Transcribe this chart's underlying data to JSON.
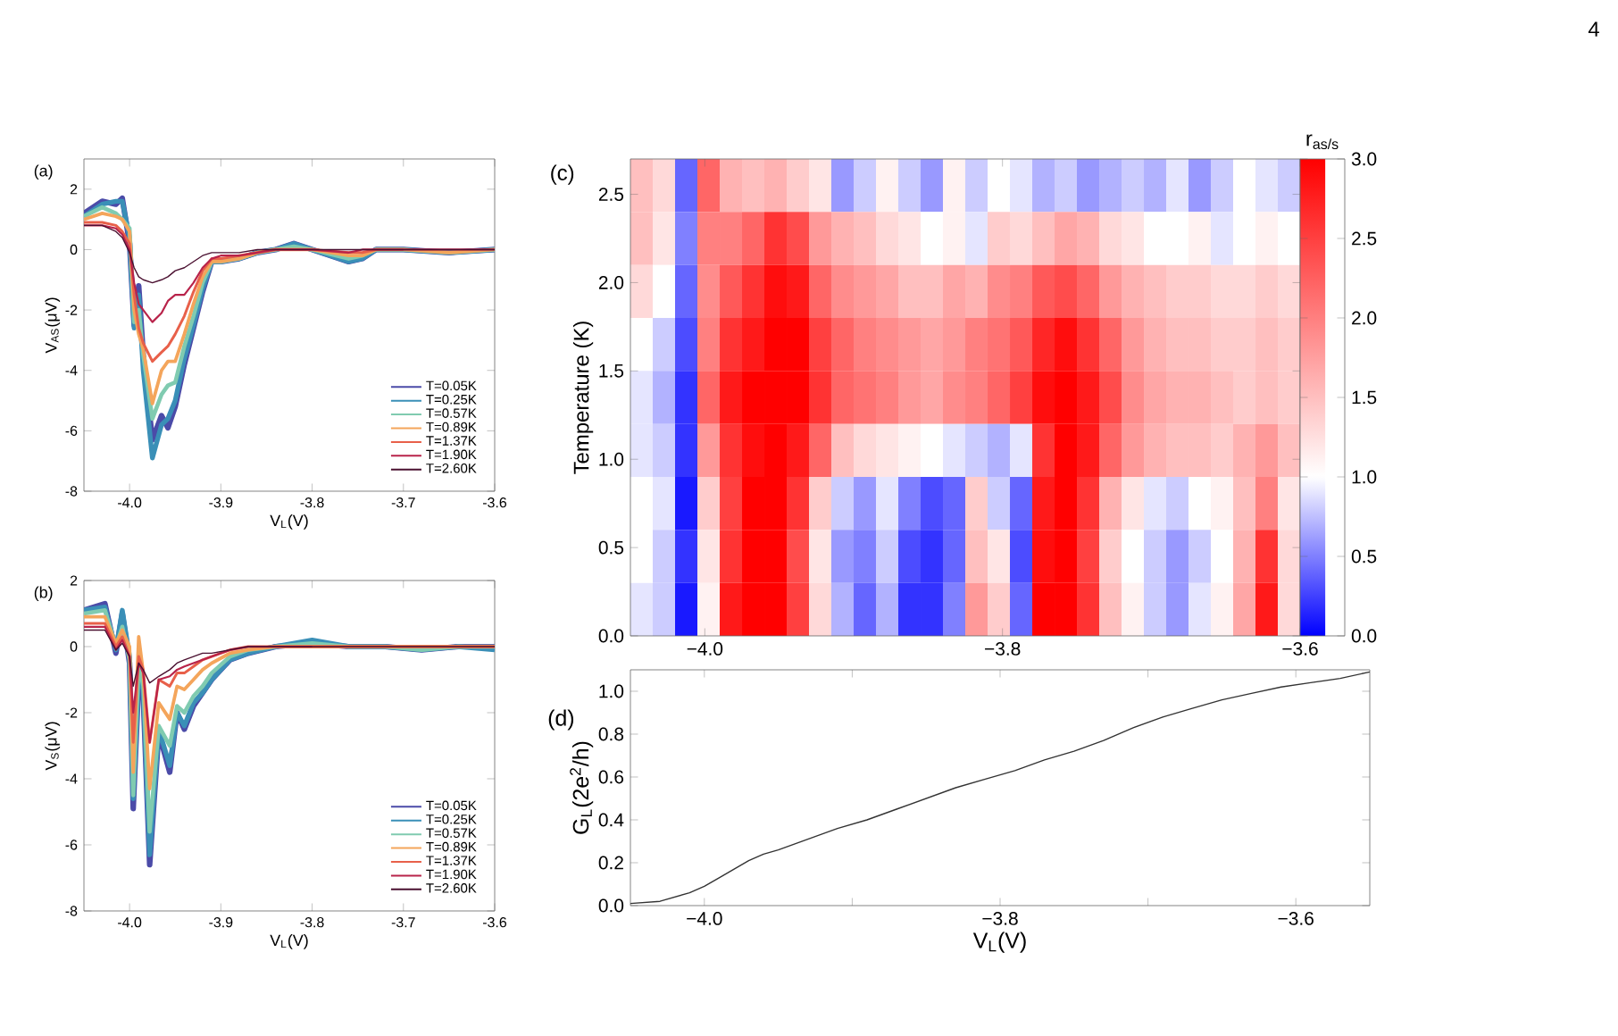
{
  "chart_data": [
    {
      "type": "line",
      "xlabel": "V$_{L}$(V)",
      "ylabel": "V$_{AS}$(μV)",
      "annotations": [
        "(a)"
      ],
      "legend": "bottom right",
      "xlim": [
        -4.05,
        -3.6
      ],
      "ylim": [
        -8,
        3
      ],
      "xticks": [
        {
          "value": -4.0,
          "label": "-4.0"
        },
        {
          "value": -3.9,
          "label": "-3.9"
        },
        {
          "value": -3.8,
          "label": "-3.8"
        },
        {
          "value": -3.7,
          "label": "-3.7"
        },
        {
          "value": -3.6,
          "label": "-3.6"
        }
      ],
      "yticks": [
        -8,
        -6,
        -4,
        -2,
        0,
        2
      ],
      "x": [
        -4.05,
        -4.03,
        -4.015,
        -4.008,
        -4.0,
        -3.995,
        -3.99,
        -3.985,
        -3.975,
        -3.965,
        -3.958,
        -3.95,
        -3.94,
        -3.93,
        -3.92,
        -3.91,
        -3.9,
        -3.88,
        -3.86,
        -3.84,
        -3.82,
        -3.8,
        -3.76,
        -3.745,
        -3.73,
        -3.7,
        -3.65,
        -3.6
      ],
      "series": [
        {
          "name": "T=0.05K",
          "color": "#4b4ba8",
          "values": [
            1.2,
            1.6,
            1.5,
            1.7,
            0.2,
            -2.5,
            -1.2,
            -3.5,
            -6.3,
            -5.5,
            -5.9,
            -5.2,
            -3.8,
            -2.6,
            -1.4,
            -0.4,
            -0.4,
            -0.3,
            -0.1,
            0.0,
            0.2,
            0.0,
            -0.4,
            -0.3,
            0.0,
            0.0,
            -0.1,
            0.0
          ]
        },
        {
          "name": "T=0.25K",
          "color": "#3a8fb7",
          "values": [
            1.1,
            1.5,
            1.6,
            1.6,
            0.4,
            -2.6,
            -1.5,
            -4.0,
            -6.9,
            -5.8,
            -5.6,
            -5.0,
            -3.6,
            -2.5,
            -1.3,
            -0.4,
            -0.4,
            -0.3,
            -0.1,
            0.0,
            0.2,
            0.0,
            -0.4,
            -0.3,
            0.0,
            0.0,
            -0.1,
            0.0
          ]
        },
        {
          "name": "T=0.57K",
          "color": "#80cbb0",
          "values": [
            1.1,
            1.4,
            1.2,
            1.0,
            0.7,
            -2.4,
            -2.0,
            -3.5,
            -5.6,
            -4.8,
            -4.5,
            -4.4,
            -3.2,
            -2.2,
            -1.1,
            -0.4,
            -0.4,
            -0.3,
            -0.1,
            0.0,
            0.1,
            0.0,
            -0.3,
            -0.2,
            0.0,
            0.0,
            -0.1,
            0.0
          ]
        },
        {
          "name": "T=0.89K",
          "color": "#f4a55b",
          "values": [
            1.0,
            1.2,
            1.1,
            1.0,
            0.6,
            -2.0,
            -2.8,
            -3.3,
            -5.1,
            -4.0,
            -3.7,
            -3.7,
            -2.8,
            -1.8,
            -0.9,
            -0.4,
            -0.4,
            -0.3,
            -0.1,
            0.0,
            0.0,
            0.0,
            -0.2,
            -0.2,
            0.0,
            0.0,
            -0.1,
            0.0
          ]
        },
        {
          "name": "T=1.37K",
          "color": "#e8604a",
          "values": [
            0.9,
            0.9,
            0.8,
            0.6,
            0.2,
            -1.5,
            -2.6,
            -3.1,
            -3.7,
            -3.4,
            -3.2,
            -2.8,
            -2.2,
            -1.4,
            -0.7,
            -0.3,
            -0.3,
            -0.2,
            -0.1,
            0.0,
            0.0,
            0.0,
            -0.1,
            -0.1,
            0.0,
            0.0,
            null,
            null
          ]
        },
        {
          "name": "T=1.90K",
          "color": "#b8234a",
          "values": [
            0.8,
            0.8,
            0.7,
            0.5,
            0.0,
            -1.1,
            -1.8,
            -2.0,
            -2.4,
            -2.1,
            -1.7,
            -1.5,
            -1.5,
            -1.1,
            -0.6,
            -0.3,
            -0.2,
            -0.2,
            -0.1,
            0.0,
            0.0,
            0.0,
            -0.1,
            0.0,
            0.0,
            0.0,
            0.0,
            0.0
          ]
        },
        {
          "name": "T=2.60K",
          "color": "#4a1030",
          "values": [
            0.8,
            0.8,
            0.6,
            0.4,
            -0.1,
            -0.6,
            -0.9,
            -1.0,
            -1.1,
            -1.0,
            -0.9,
            -0.7,
            -0.6,
            -0.4,
            -0.2,
            -0.1,
            -0.1,
            -0.1,
            0.0,
            0.0,
            0.0,
            0.0,
            0.0,
            0.0,
            0.0,
            0.0,
            0.0,
            0.0
          ]
        }
      ]
    },
    {
      "type": "line",
      "xlabel": "V$_{L}$(V)",
      "ylabel": "V$_{S}$(μV)",
      "annotations": [
        "(b)"
      ],
      "legend": "bottom right",
      "xlim": [
        -4.05,
        -3.6
      ],
      "ylim": [
        -8,
        2
      ],
      "xticks": [
        {
          "value": -4.0,
          "label": "-4.0"
        },
        {
          "value": -3.9,
          "label": "-3.9"
        },
        {
          "value": -3.8,
          "label": "-3.8"
        },
        {
          "value": -3.7,
          "label": "-3.7"
        },
        {
          "value": -3.6,
          "label": "-3.6"
        }
      ],
      "yticks": [
        -8,
        -6,
        -4,
        -2,
        0,
        2
      ],
      "x": [
        -4.05,
        -4.027,
        -4.015,
        -4.008,
        -4.0,
        -3.996,
        -3.99,
        -3.985,
        -3.978,
        -3.968,
        -3.956,
        -3.948,
        -3.94,
        -3.93,
        -3.92,
        -3.91,
        -3.89,
        -3.87,
        -3.84,
        -3.8,
        -3.76,
        -3.72,
        -3.68,
        -3.64,
        -3.6
      ],
      "series": [
        {
          "name": "T=0.05K",
          "color": "#4b4ba8",
          "values": [
            1.1,
            1.3,
            -0.2,
            1.0,
            -0.5,
            -4.9,
            -1.0,
            -1.5,
            -6.6,
            -2.6,
            -3.8,
            -2.0,
            -2.5,
            -1.8,
            -1.4,
            -1.0,
            -0.4,
            -0.2,
            0.0,
            0.1,
            0.0,
            0.0,
            -0.1,
            0.0,
            0.0
          ]
        },
        {
          "name": "T=0.25K",
          "color": "#3a8fb7",
          "values": [
            1.1,
            1.2,
            -0.1,
            1.1,
            -0.3,
            -4.6,
            -0.8,
            -1.3,
            -6.3,
            -2.5,
            -3.6,
            -2.0,
            -2.4,
            -1.7,
            -1.4,
            -1.0,
            -0.4,
            -0.2,
            0.0,
            0.2,
            0.0,
            0.0,
            -0.1,
            0.0,
            -0.1
          ]
        },
        {
          "name": "T=0.57K",
          "color": "#80cbb0",
          "values": [
            1.0,
            1.1,
            0.0,
            0.6,
            -0.4,
            -4.5,
            -0.5,
            -1.2,
            -5.6,
            -2.4,
            -3.0,
            -1.8,
            -2.0,
            -1.5,
            -1.2,
            -0.8,
            -0.3,
            -0.1,
            0.0,
            0.1,
            0.0,
            0.0,
            -0.1,
            0.0,
            0.0
          ]
        },
        {
          "name": "T=0.89K",
          "color": "#f4a55b",
          "values": [
            0.9,
            0.9,
            0.1,
            0.5,
            0.0,
            -3.8,
            0.3,
            -0.8,
            -4.3,
            -1.7,
            -2.2,
            -1.2,
            -1.3,
            -1.0,
            -0.7,
            -0.5,
            -0.2,
            -0.1,
            0.0,
            0.0,
            0.0,
            0.0,
            0.0,
            0.0,
            0.0
          ]
        },
        {
          "name": "T=1.37K",
          "color": "#e8604a",
          "values": [
            0.7,
            0.7,
            0.0,
            0.3,
            -0.3,
            -2.9,
            -0.3,
            -0.7,
            -2.9,
            -1.0,
            -1.2,
            -0.8,
            -0.8,
            -0.6,
            -0.4,
            -0.3,
            -0.1,
            0.0,
            0.0,
            0.0,
            0.0,
            0.0,
            0.0,
            0.0,
            0.0
          ]
        },
        {
          "name": "T=1.90K",
          "color": "#b8234a",
          "values": [
            0.6,
            0.6,
            -0.1,
            0.2,
            -0.3,
            -2.0,
            -0.5,
            -0.8,
            -2.9,
            -1.0,
            -0.9,
            -0.7,
            -0.6,
            -0.5,
            -0.4,
            -0.3,
            -0.1,
            0.0,
            0.0,
            0.0,
            null,
            null,
            null,
            null,
            null
          ]
        },
        {
          "name": "T=2.60K",
          "color": "#4a1030",
          "values": [
            0.5,
            0.5,
            -0.1,
            0.1,
            -0.3,
            -1.2,
            -0.5,
            -0.7,
            -1.1,
            -0.9,
            -0.7,
            -0.5,
            -0.4,
            -0.3,
            -0.2,
            -0.2,
            -0.1,
            0.0,
            0.0,
            0.0,
            0.0,
            0.0,
            0.0,
            0.0,
            0.0
          ]
        }
      ]
    },
    {
      "type": "heatmap",
      "ylabel": "Temperature (K)",
      "clabel": "r$_{as/s}$",
      "annotations": [
        "(c)",
        "4"
      ],
      "xlim": [
        -4.05,
        -3.6
      ],
      "ylim": [
        0,
        2.7
      ],
      "xticks": [
        {
          "value": -4.0,
          "label": "−4.0"
        },
        {
          "value": -3.8,
          "label": "−3.8"
        },
        {
          "value": -3.6,
          "label": "−3.6"
        }
      ],
      "yticks": [
        {
          "value": 0,
          "label": "0.0"
        },
        {
          "value": 0.5,
          "label": "0.5"
        },
        {
          "value": 1.0,
          "label": "1.0"
        },
        {
          "value": 1.5,
          "label": "1.5"
        },
        {
          "value": 2.0,
          "label": "2.0"
        },
        {
          "value": 2.5,
          "label": "2.5"
        }
      ],
      "clim": [
        0,
        3
      ],
      "cticks": [
        {
          "value": 0,
          "label": "0.0"
        },
        {
          "value": 0.5,
          "label": "0.5"
        },
        {
          "value": 1.0,
          "label": "1.0"
        },
        {
          "value": 1.5,
          "label": "1.5"
        },
        {
          "value": 2.0,
          "label": "2.0"
        },
        {
          "value": 2.5,
          "label": "2.5"
        },
        {
          "value": 3.0,
          "label": "3.0"
        }
      ],
      "cells": [
        [
          1.5,
          1.3,
          0.4,
          2.2,
          1.6,
          1.5,
          1.6,
          1.4,
          1.2,
          0.6,
          0.8,
          1.1,
          0.8,
          0.6,
          1.1,
          0.8,
          1.0,
          0.9,
          0.7,
          0.8,
          0.6,
          0.7,
          0.8,
          0.7,
          0.9,
          0.6,
          0.8,
          1.0,
          0.9,
          0.8
        ],
        [
          1.5,
          1.2,
          0.5,
          2.0,
          2.0,
          2.2,
          2.6,
          2.4,
          1.8,
          1.6,
          1.5,
          1.3,
          1.2,
          1.0,
          1.1,
          0.9,
          1.4,
          1.3,
          1.5,
          1.7,
          1.6,
          1.3,
          1.2,
          1.0,
          1.0,
          1.1,
          0.9,
          1.0,
          1.1,
          1.0
        ],
        [
          1.3,
          1.0,
          0.4,
          1.9,
          2.3,
          2.6,
          2.9,
          2.8,
          2.2,
          1.9,
          1.8,
          1.7,
          1.5,
          1.5,
          1.7,
          1.6,
          1.9,
          2.0,
          2.3,
          2.4,
          2.2,
          1.8,
          1.6,
          1.5,
          1.4,
          1.4,
          1.3,
          1.3,
          1.4,
          1.3
        ],
        [
          1.0,
          0.8,
          0.3,
          2.0,
          2.6,
          2.8,
          3.0,
          3.0,
          2.5,
          2.2,
          2.0,
          1.9,
          1.8,
          1.7,
          1.8,
          2.0,
          2.1,
          2.3,
          2.7,
          2.9,
          2.6,
          2.2,
          1.8,
          1.6,
          1.5,
          1.5,
          1.4,
          1.4,
          1.5,
          1.4
        ],
        [
          0.9,
          0.7,
          0.2,
          2.2,
          2.8,
          3.0,
          3.0,
          3.0,
          2.6,
          2.2,
          2.1,
          2.0,
          1.8,
          1.7,
          1.9,
          2.0,
          2.2,
          2.5,
          2.9,
          3.0,
          2.8,
          2.4,
          1.9,
          1.7,
          1.6,
          1.6,
          1.5,
          1.4,
          1.5,
          1.4
        ],
        [
          0.9,
          0.8,
          0.2,
          1.8,
          2.6,
          2.9,
          3.0,
          2.8,
          2.2,
          1.5,
          1.3,
          1.2,
          1.1,
          1.0,
          0.9,
          0.8,
          0.7,
          0.9,
          2.6,
          3.0,
          2.8,
          2.2,
          1.8,
          1.6,
          1.5,
          1.5,
          1.4,
          1.6,
          1.8,
          1.5
        ],
        [
          1.0,
          0.9,
          0.1,
          1.4,
          2.5,
          3.0,
          3.0,
          2.6,
          1.4,
          0.8,
          0.6,
          0.9,
          0.5,
          0.3,
          0.4,
          1.4,
          0.8,
          0.4,
          2.8,
          3.0,
          2.6,
          1.6,
          1.2,
          0.9,
          0.8,
          1.0,
          1.1,
          1.5,
          2.0,
          1.2
        ],
        [
          1.0,
          0.8,
          0.2,
          1.2,
          2.6,
          3.0,
          3.0,
          2.4,
          1.2,
          0.6,
          0.5,
          0.8,
          0.3,
          0.2,
          0.4,
          1.5,
          1.2,
          0.3,
          2.9,
          3.0,
          2.5,
          1.4,
          1.0,
          0.8,
          0.6,
          0.8,
          1.0,
          1.6,
          2.6,
          1.3
        ],
        [
          0.9,
          0.8,
          0.1,
          1.1,
          2.8,
          3.0,
          3.0,
          2.5,
          1.3,
          0.7,
          0.4,
          0.7,
          0.2,
          0.2,
          0.5,
          1.8,
          1.4,
          0.4,
          3.0,
          3.0,
          2.6,
          1.5,
          1.1,
          0.8,
          0.6,
          0.9,
          1.1,
          1.7,
          2.8,
          1.3
        ]
      ]
    },
    {
      "type": "line",
      "xlabel": "V$_{L}$(V)",
      "ylabel": "G$_{L}$(2e$^{2}$/h)",
      "annotations": [
        "(d)"
      ],
      "xlim": [
        -4.05,
        -3.55
      ],
      "ylim": [
        0,
        1.1
      ],
      "xticks": [
        {
          "value": -4.0,
          "label": "−4.0"
        },
        {
          "value": -3.9,
          "label": null
        },
        {
          "value": -3.8,
          "label": "−3.8"
        },
        {
          "value": -3.7,
          "label": null
        },
        {
          "value": -3.6,
          "label": "−3.6"
        }
      ],
      "yticks": [
        {
          "value": 0,
          "label": "0.0"
        },
        {
          "value": 0.2,
          "label": "0.2"
        },
        {
          "value": 0.4,
          "label": "0.4"
        },
        {
          "value": 0.6,
          "label": "0.6"
        },
        {
          "value": 0.8,
          "label": "0.8"
        },
        {
          "value": 1.0,
          "label": "1.0"
        }
      ],
      "x": [
        -4.05,
        -4.03,
        -4.02,
        -4.01,
        -4.0,
        -3.99,
        -3.98,
        -3.97,
        -3.96,
        -3.95,
        -3.93,
        -3.91,
        -3.89,
        -3.87,
        -3.85,
        -3.83,
        -3.81,
        -3.79,
        -3.77,
        -3.75,
        -3.73,
        -3.71,
        -3.69,
        -3.67,
        -3.65,
        -3.63,
        -3.61,
        -3.59,
        -3.57,
        -3.55
      ],
      "series": [
        {
          "color": "#333333",
          "values": [
            0.01,
            0.02,
            0.04,
            0.06,
            0.09,
            0.13,
            0.17,
            0.21,
            0.24,
            0.26,
            0.31,
            0.36,
            0.4,
            0.45,
            0.5,
            0.55,
            0.59,
            0.63,
            0.68,
            0.72,
            0.77,
            0.83,
            0.88,
            0.92,
            0.96,
            0.99,
            1.02,
            1.04,
            1.06,
            1.09
          ]
        }
      ]
    }
  ]
}
